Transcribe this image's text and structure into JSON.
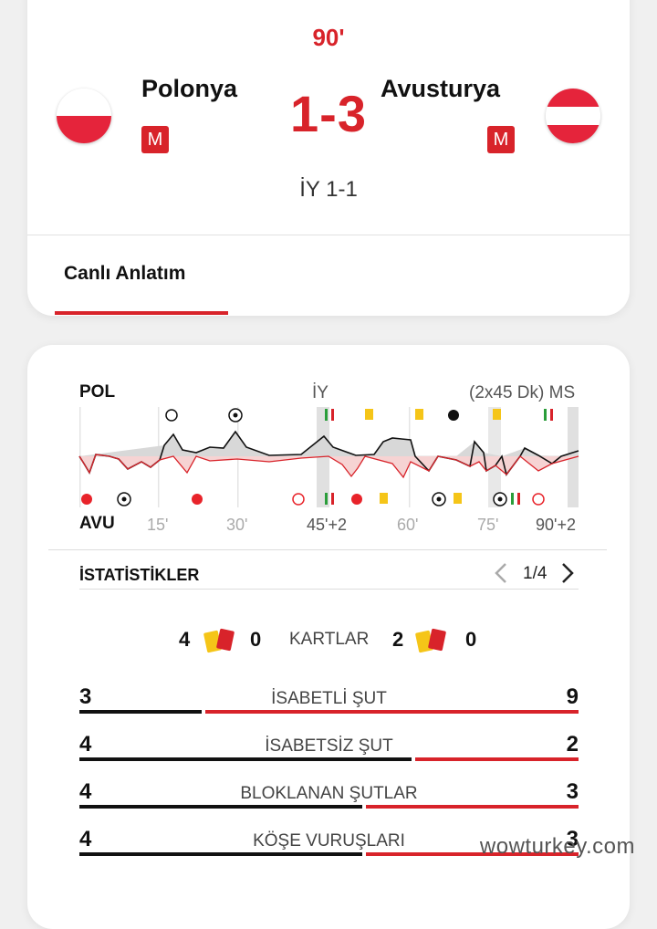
{
  "match": {
    "minute": "90'",
    "home": {
      "name": "Polonya",
      "badge": "M",
      "code": "POL"
    },
    "away": {
      "name": "Avusturya",
      "badge": "M",
      "code": "AVU"
    },
    "score": "1-3",
    "halftime": "İY 1-1"
  },
  "tabs": [
    {
      "label": "Canlı Anlatım",
      "active": true
    }
  ],
  "timeline": {
    "ht_label": "İY",
    "ft_label": "(2x45 Dk) MS",
    "ticks": [
      "15'",
      "30'",
      "45'+2",
      "60'",
      "75'",
      "90'+2"
    ]
  },
  "stats": {
    "title": "İSTATİSTİKLER",
    "page": "1/4",
    "cards": {
      "label": "KARTLAR",
      "home_yellow": "4",
      "home_red": "0",
      "away_yellow": "2",
      "away_red": "0"
    },
    "rows": [
      {
        "label": "İSABETLİ ŞUT",
        "home": "3",
        "away": "9"
      },
      {
        "label": "İSABETSİZ ŞUT",
        "home": "4",
        "away": "2"
      },
      {
        "label": "BLOKLANAN ŞUTLAR",
        "home": "4",
        "away": "3"
      },
      {
        "label": "KÖŞE VURUŞLARI",
        "home": "4",
        "away": "3"
      }
    ]
  },
  "watermark": "wowturkey.com",
  "colors": {
    "accent": "#d8232a",
    "home_bar": "#111111",
    "away_bar": "#d8232a",
    "card_yellow": "#f5c518"
  }
}
